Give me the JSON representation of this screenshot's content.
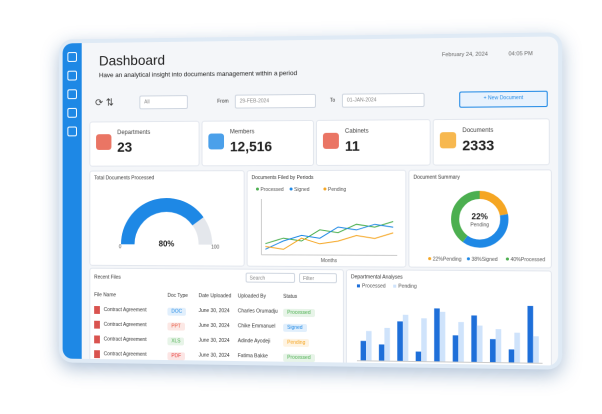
{
  "header": {
    "title": "Dashboard",
    "subtitle": "Have an analytical insight  into documents management within a period",
    "date": "February 24, 2024",
    "time": "04:05 PM"
  },
  "toolbar": {
    "filter": "All",
    "from_label": "From",
    "from_date": "29-FEB-2024",
    "to_label": "To",
    "to_date": "01-JAN-2024",
    "button": "+ New Document"
  },
  "kpis": [
    {
      "label": "Departments",
      "value": "23"
    },
    {
      "label": "Members",
      "value": "12,516"
    },
    {
      "label": "Cabinets",
      "value": "11"
    },
    {
      "label": "Documents",
      "value": "2333"
    }
  ],
  "gauge": {
    "title": "Total Documents Processed",
    "value": 80,
    "value_label": "80%",
    "min": 0,
    "max": 100,
    "color": "#1e88e5"
  },
  "lines": {
    "title": "Documents Filed by Periods",
    "x_label": "Months",
    "ylim": [
      0,
      100
    ],
    "series": [
      {
        "name": "Processed",
        "color": "#4caf50",
        "values": [
          20,
          30,
          25,
          45,
          40,
          55,
          50,
          60
        ]
      },
      {
        "name": "Signed",
        "color": "#1e88e5",
        "values": [
          10,
          25,
          35,
          30,
          50,
          45,
          55,
          50
        ]
      },
      {
        "name": "Pending",
        "color": "#f5a623",
        "values": [
          15,
          10,
          30,
          20,
          25,
          35,
          30,
          40
        ]
      }
    ]
  },
  "donut": {
    "title": "Document Summary",
    "center_value": "22%",
    "center_label": "Pending",
    "segments": [
      {
        "name": "Pending",
        "value": 22,
        "value_label": "22%",
        "color": "#f5a623"
      },
      {
        "name": "Signed",
        "value": 38,
        "value_label": "38%",
        "color": "#1e88e5"
      },
      {
        "name": "Processed",
        "value": 40,
        "value_label": "40%",
        "color": "#4caf50"
      }
    ]
  },
  "recent_files": {
    "title": "Recent Files",
    "search": "Search",
    "filter": "Filter",
    "columns": [
      "File Name",
      "Doc Type",
      "Date Uploaded",
      "Uploaded By",
      "Status"
    ],
    "rows": [
      {
        "file": "Contract Agreement",
        "type": "DOC",
        "type_color": "#1e88e5",
        "date": "June 30, 2024",
        "by": "Charles Orumadju",
        "status": "Processed",
        "status_color": "#4caf50"
      },
      {
        "file": "Contract Agreement",
        "type": "PPT",
        "type_color": "#e5533d",
        "date": "June 30, 2024",
        "by": "Chike Emmanuel",
        "status": "Signed",
        "status_color": "#1e88e5"
      },
      {
        "file": "Contract Agreement",
        "type": "XLS",
        "type_color": "#4caf50",
        "date": "June 30, 2024",
        "by": "Adinde Ayodeji",
        "status": "Pending",
        "status_color": "#f5a623"
      },
      {
        "file": "Contract Agreement",
        "type": "PDF",
        "type_color": "#e53935",
        "date": "June 30, 2024",
        "by": "Fatima Bakke",
        "status": "Processed",
        "status_color": "#4caf50"
      }
    ]
  },
  "bars": {
    "title": "Departmental Analyses",
    "ylim": [
      0,
      100
    ],
    "series": [
      {
        "name": "Processed",
        "color": "#1e6fd9",
        "values": [
          30,
          25,
          60,
          15,
          80,
          40,
          70,
          35,
          20,
          85
        ]
      },
      {
        "name": "Pending",
        "color": "#cfe3fb",
        "values": [
          45,
          50,
          70,
          65,
          75,
          60,
          55,
          50,
          45,
          40
        ]
      }
    ]
  }
}
